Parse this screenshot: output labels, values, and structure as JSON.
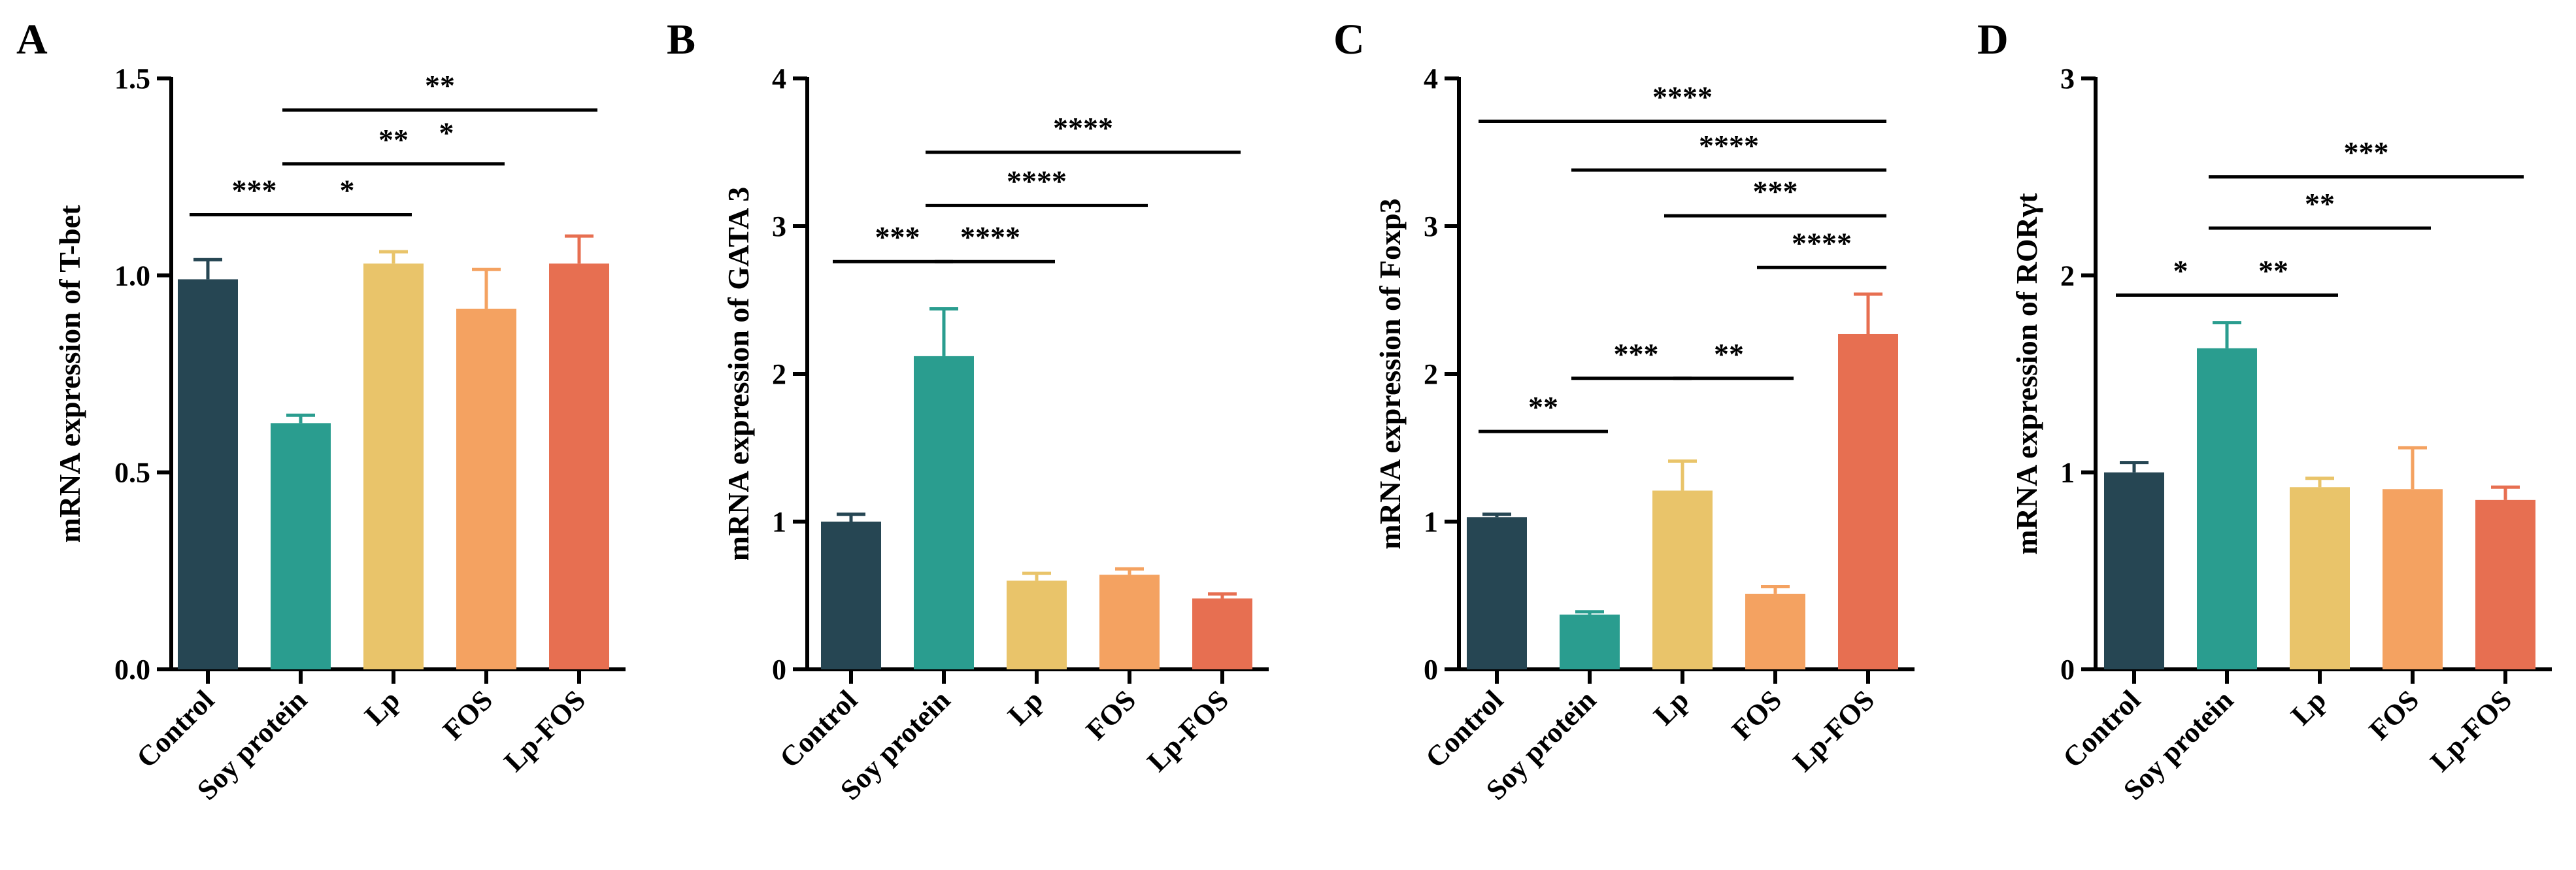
{
  "colors": [
    "#264653",
    "#2A9D8F",
    "#E9C46A",
    "#F4A261",
    "#E76F51"
  ],
  "chart_data": [
    {
      "type": "bar",
      "panel": "A",
      "categories": [
        "Control",
        "Soy protein",
        "Lp",
        "FOS",
        "Lp-FOS"
      ],
      "values": [
        0.99,
        0.625,
        1.03,
        0.915,
        1.03
      ],
      "errors": [
        0.05,
        0.02,
        0.03,
        0.1,
        0.07
      ],
      "ylabel": "mRNA expression of T-bet",
      "ylim": [
        0,
        1.5
      ],
      "yticks": [
        0,
        0.5,
        1.0,
        1.5
      ],
      "ytick_labels": [
        "0.0",
        "0.5",
        "1.0",
        "1.5"
      ],
      "significance": [
        {
          "from": 0,
          "to": 1,
          "y": 1.154,
          "label": "***"
        },
        {
          "from": 1,
          "to": 2,
          "y": 1.154,
          "label": "*"
        },
        {
          "from": 1,
          "to": 3,
          "y": 1.283,
          "label": "**"
        },
        {
          "from": 1,
          "to": 4,
          "y": 1.42,
          "label": "**"
        }
      ],
      "extra_labels": [
        {
          "x": 2.5,
          "y": 1.35,
          "label": "*"
        }
      ]
    },
    {
      "type": "bar",
      "panel": "B",
      "categories": [
        "Control",
        "Soy protein",
        "Lp",
        "FOS",
        "Lp-FOS"
      ],
      "values": [
        1.0,
        2.12,
        0.6,
        0.64,
        0.48
      ],
      "errors": [
        0.05,
        0.32,
        0.05,
        0.04,
        0.03
      ],
      "ylabel": "mRNA expression of GATA 3",
      "ylim": [
        0,
        4
      ],
      "yticks": [
        0,
        1,
        2,
        3,
        4
      ],
      "ytick_labels": [
        "0",
        "1",
        "2",
        "3",
        "4"
      ],
      "significance": [
        {
          "from": 0,
          "to": 1,
          "y": 2.76,
          "label": "***"
        },
        {
          "from": 1,
          "to": 2,
          "y": 2.76,
          "label": "****"
        },
        {
          "from": 1,
          "to": 3,
          "y": 3.14,
          "label": "****"
        },
        {
          "from": 1,
          "to": 4,
          "y": 3.5,
          "label": "****"
        }
      ],
      "extra_labels": []
    },
    {
      "type": "bar",
      "panel": "C",
      "categories": [
        "Control",
        "Soy protein",
        "Lp",
        "FOS",
        "Lp-FOS"
      ],
      "values": [
        1.03,
        0.37,
        1.21,
        0.51,
        2.27
      ],
      "errors": [
        0.02,
        0.02,
        0.2,
        0.05,
        0.27
      ],
      "ylabel": "mRNA expression of Foxp3",
      "ylim": [
        0,
        4
      ],
      "yticks": [
        0,
        1,
        2,
        3,
        4
      ],
      "ytick_labels": [
        "0",
        "1",
        "2",
        "3",
        "4"
      ],
      "significance": [
        {
          "from": 0,
          "to": 1,
          "y": 1.61,
          "label": "**"
        },
        {
          "from": 1,
          "to": 2,
          "y": 1.97,
          "label": "***"
        },
        {
          "from": 2,
          "to": 3,
          "y": 1.97,
          "label": "**"
        },
        {
          "from": 3,
          "to": 4,
          "y": 2.72,
          "label": "****"
        },
        {
          "from": 2,
          "to": 4,
          "y": 3.07,
          "label": "***"
        },
        {
          "from": 1,
          "to": 4,
          "y": 3.38,
          "label": "****"
        },
        {
          "from": 0,
          "to": 4,
          "y": 3.71,
          "label": "****"
        }
      ],
      "extra_labels": []
    },
    {
      "type": "bar",
      "panel": "D",
      "categories": [
        "Control",
        "Soy protein",
        "Lp",
        "FOS",
        "Lp-FOS"
      ],
      "values": [
        1.0,
        1.63,
        0.925,
        0.915,
        0.86
      ],
      "errors": [
        0.05,
        0.13,
        0.045,
        0.21,
        0.065
      ],
      "ylabel": "mRNA expression of RORγt",
      "ylim": [
        0,
        3
      ],
      "yticks": [
        0,
        1,
        2,
        3
      ],
      "ytick_labels": [
        "0",
        "1",
        "2",
        "3"
      ],
      "significance": [
        {
          "from": 0,
          "to": 1,
          "y": 1.9,
          "label": "*"
        },
        {
          "from": 1,
          "to": 2,
          "y": 1.9,
          "label": "**"
        },
        {
          "from": 1,
          "to": 3,
          "y": 2.24,
          "label": "**"
        },
        {
          "from": 1,
          "to": 4,
          "y": 2.5,
          "label": "***"
        }
      ],
      "extra_labels": []
    }
  ]
}
